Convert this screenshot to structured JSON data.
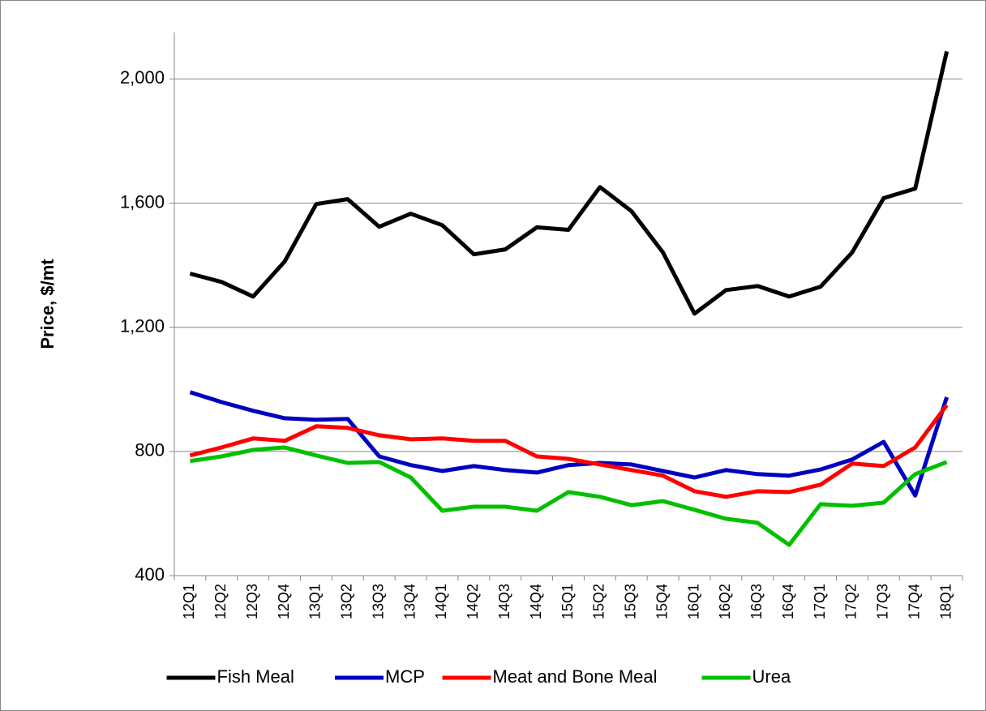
{
  "chart_data": {
    "type": "line",
    "y_label": "Price, $/mt",
    "categories": [
      "12Q1",
      "12Q2",
      "12Q3",
      "12Q4",
      "13Q1",
      "13Q2",
      "13Q3",
      "13Q4",
      "14Q1",
      "14Q2",
      "14Q3",
      "14Q4",
      "15Q1",
      "15Q2",
      "15Q3",
      "15Q4",
      "16Q1",
      "16Q2",
      "16Q3",
      "16Q4",
      "17Q1",
      "17Q2",
      "17Q3",
      "17Q4",
      "18Q1"
    ],
    "series": [
      {
        "name": "Fish Meal",
        "color": "#000000",
        "values": [
          1373,
          1346,
          1299,
          1412,
          1597,
          1613,
          1524,
          1566,
          1529,
          1435,
          1451,
          1522,
          1514,
          1652,
          1574,
          1441,
          1244,
          1320,
          1333,
          1299,
          1331,
          1441,
          1616,
          1647,
          2089
        ]
      },
      {
        "name": "MCP",
        "color": "#0000c0",
        "values": [
          991,
          959,
          931,
          907,
          902,
          905,
          784,
          756,
          737,
          753,
          740,
          732,
          756,
          763,
          758,
          737,
          716,
          740,
          727,
          722,
          742,
          774,
          831,
          658,
          975
        ]
      },
      {
        "name": "Meat and Bone Meal",
        "color": "#ff0000",
        "values": [
          787,
          813,
          842,
          834,
          881,
          876,
          852,
          839,
          842,
          834,
          834,
          784,
          776,
          758,
          740,
          722,
          672,
          654,
          672,
          669,
          693,
          761,
          753,
          813,
          949
        ]
      },
      {
        "name": "Urea",
        "color": "#00c000",
        "values": [
          769,
          784,
          805,
          813,
          787,
          763,
          766,
          716,
          609,
          622,
          622,
          609,
          669,
          654,
          627,
          640,
          612,
          583,
          570,
          499,
          630,
          625,
          635,
          727,
          766
        ]
      }
    ],
    "ylim": [
      400,
      2150
    ],
    "yticks": [
      {
        "value": 400,
        "label": "400"
      },
      {
        "value": 800,
        "label": "800"
      },
      {
        "value": 1200,
        "label": "1,200"
      },
      {
        "value": 1600,
        "label": "1,600"
      },
      {
        "value": 2000,
        "label": "2,000"
      }
    ],
    "grid": true,
    "legend": "bottom"
  }
}
